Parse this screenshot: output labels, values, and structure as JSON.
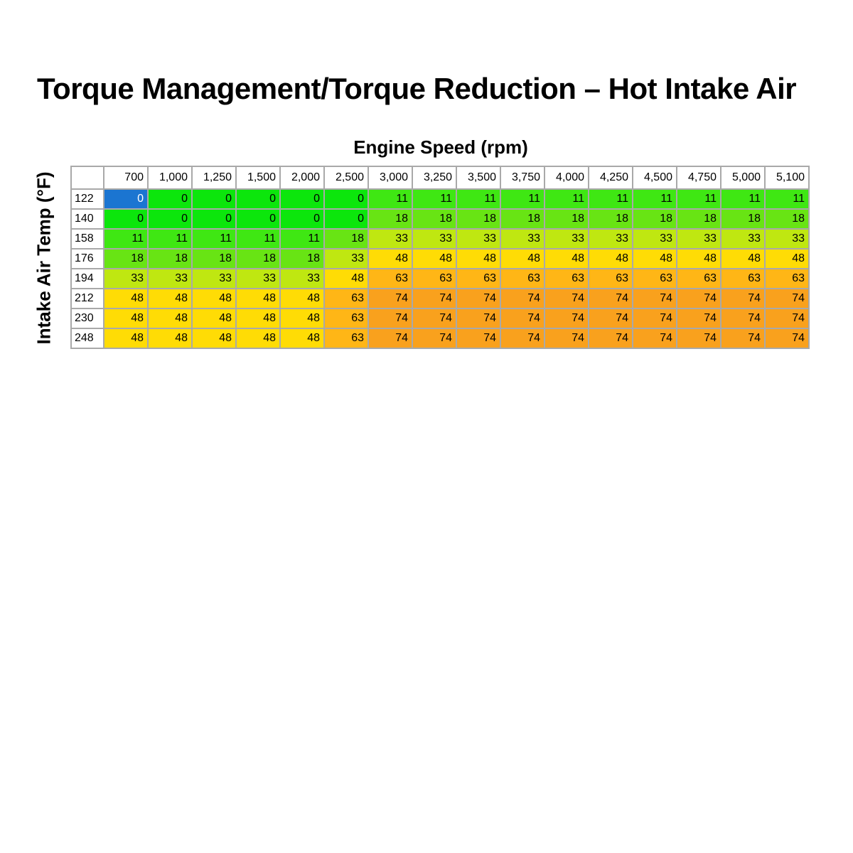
{
  "page": {
    "title": "Torque Management/Torque Reduction – Hot Intake Air",
    "x_axis_label": "Engine Speed (rpm)",
    "y_axis_label": "Intake Air Temp (°F)"
  },
  "table": {
    "column_headers": [
      "700",
      "1,000",
      "1,250",
      "1,500",
      "2,000",
      "2,500",
      "3,000",
      "3,250",
      "3,500",
      "3,750",
      "4,000",
      "4,250",
      "4,500",
      "4,750",
      "5,000",
      "5,100"
    ],
    "row_headers": [
      "122",
      "140",
      "158",
      "176",
      "194",
      "212",
      "230",
      "248"
    ],
    "values": [
      [
        0,
        0,
        0,
        0,
        0,
        0,
        11,
        11,
        11,
        11,
        11,
        11,
        11,
        11,
        11,
        11
      ],
      [
        0,
        0,
        0,
        0,
        0,
        0,
        18,
        18,
        18,
        18,
        18,
        18,
        18,
        18,
        18,
        18
      ],
      [
        11,
        11,
        11,
        11,
        11,
        18,
        33,
        33,
        33,
        33,
        33,
        33,
        33,
        33,
        33,
        33
      ],
      [
        18,
        18,
        18,
        18,
        18,
        33,
        48,
        48,
        48,
        48,
        48,
        48,
        48,
        48,
        48,
        48
      ],
      [
        33,
        33,
        33,
        33,
        33,
        48,
        63,
        63,
        63,
        63,
        63,
        63,
        63,
        63,
        63,
        63
      ],
      [
        48,
        48,
        48,
        48,
        48,
        63,
        74,
        74,
        74,
        74,
        74,
        74,
        74,
        74,
        74,
        74
      ],
      [
        48,
        48,
        48,
        48,
        48,
        63,
        74,
        74,
        74,
        74,
        74,
        74,
        74,
        74,
        74,
        74
      ],
      [
        48,
        48,
        48,
        48,
        48,
        63,
        74,
        74,
        74,
        74,
        74,
        74,
        74,
        74,
        74,
        74
      ]
    ],
    "selected_cell": {
      "row": 0,
      "col": 0
    }
  },
  "colors": {
    "selection_bg": "#1b75d1",
    "selection_text": "#ffffff",
    "grid_line": "#a9a9a9",
    "value_colors": {
      "0": "#0ce60c",
      "11": "#3fe713",
      "18": "#68e414",
      "33": "#bfe711",
      "48": "#ffdc05",
      "63": "#ffb616",
      "74": "#f9a11d"
    }
  },
  "chart_data": {
    "type": "heatmap",
    "title": "Torque Management/Torque Reduction – Hot Intake Air",
    "xlabel": "Engine Speed (rpm)",
    "ylabel": "Intake Air Temp (°F)",
    "x": [
      700,
      1000,
      1250,
      1500,
      2000,
      2500,
      3000,
      3250,
      3500,
      3750,
      4000,
      4250,
      4500,
      4750,
      5000,
      5100
    ],
    "y": [
      122,
      140,
      158,
      176,
      194,
      212,
      230,
      248
    ],
    "values": [
      [
        0,
        0,
        0,
        0,
        0,
        0,
        11,
        11,
        11,
        11,
        11,
        11,
        11,
        11,
        11,
        11
      ],
      [
        0,
        0,
        0,
        0,
        0,
        0,
        18,
        18,
        18,
        18,
        18,
        18,
        18,
        18,
        18,
        18
      ],
      [
        11,
        11,
        11,
        11,
        11,
        18,
        33,
        33,
        33,
        33,
        33,
        33,
        33,
        33,
        33,
        33
      ],
      [
        18,
        18,
        18,
        18,
        18,
        33,
        48,
        48,
        48,
        48,
        48,
        48,
        48,
        48,
        48,
        48
      ],
      [
        33,
        33,
        33,
        33,
        33,
        48,
        63,
        63,
        63,
        63,
        63,
        63,
        63,
        63,
        63,
        63
      ],
      [
        48,
        48,
        48,
        48,
        48,
        63,
        74,
        74,
        74,
        74,
        74,
        74,
        74,
        74,
        74,
        74
      ],
      [
        48,
        48,
        48,
        48,
        48,
        63,
        74,
        74,
        74,
        74,
        74,
        74,
        74,
        74,
        74,
        74
      ],
      [
        48,
        48,
        48,
        48,
        48,
        63,
        74,
        74,
        74,
        74,
        74,
        74,
        74,
        74,
        74,
        74
      ]
    ],
    "value_color_scale": {
      "0": "#0ce60c",
      "11": "#3fe713",
      "18": "#68e414",
      "33": "#bfe711",
      "48": "#ffdc05",
      "63": "#ffb616",
      "74": "#f9a11d"
    },
    "legend": "none",
    "grid": true
  }
}
